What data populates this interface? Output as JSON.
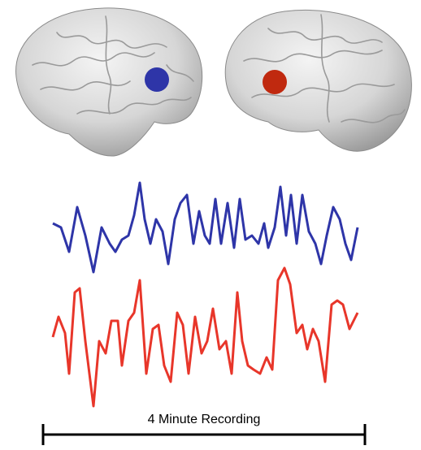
{
  "scale_bar": {
    "label": "4 Minute Recording"
  }
}
